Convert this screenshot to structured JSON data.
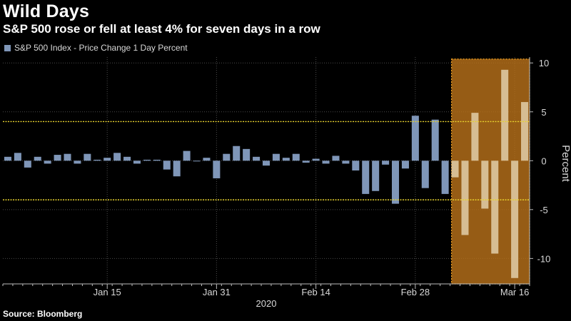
{
  "header": {
    "title": "Wild Days",
    "subtitle": "S&P 500 rose or fell at least 4% for seven days in a row"
  },
  "footer": {
    "source": "Source: Bloomberg"
  },
  "chart_data": {
    "type": "bar",
    "series": [
      {
        "name": "S&P 500 Index - Price Change 1 Day Percent",
        "values": [
          0.4,
          0.8,
          -0.7,
          0.4,
          -0.3,
          0.6,
          0.7,
          -0.3,
          0.7,
          0.1,
          0.3,
          0.8,
          0.4,
          -0.3,
          0.1,
          0.1,
          -0.9,
          -1.6,
          1.0,
          0.0,
          0.3,
          -1.8,
          0.7,
          1.5,
          1.2,
          0.4,
          -0.5,
          0.7,
          0.3,
          0.7,
          -0.2,
          0.2,
          -0.3,
          0.5,
          -0.3,
          -1.0,
          -3.4,
          -3.1,
          -0.4,
          -4.4,
          -0.8,
          4.6,
          -2.8,
          4.2,
          -3.4,
          -1.7,
          -7.6,
          4.9,
          -4.9,
          -9.5,
          9.3,
          -12.0,
          6.0
        ]
      }
    ],
    "x_ticks": [
      "Jan 15",
      "Jan 31",
      "Feb 14",
      "Feb 28",
      "Mar 16"
    ],
    "x_tick_index": [
      10,
      21,
      31,
      41,
      51
    ],
    "x_group_label": "2020",
    "ylabel": "Percent",
    "ylim": [
      -12.6,
      10.6
    ],
    "y_ticks": [
      10,
      5,
      0,
      -5,
      -10
    ],
    "y_tick_labels": [
      "10",
      "5",
      "0",
      "-5",
      "-10"
    ],
    "threshold_lines": [
      4,
      -4
    ],
    "highlight_range": {
      "from_index": 45,
      "to_index": 52,
      "ymin": -12.6,
      "ymax": 10.4
    },
    "grid": true,
    "legend_position": "top-left",
    "colors": {
      "bar": "#7f96b8",
      "bar_highlight": "#d6bd93",
      "threshold": "#e8d22e",
      "highlight_fill": "#b7701a",
      "highlight_border": "#f0a020",
      "grid": "#4a4a4a",
      "axis": "#bbbbbb"
    }
  }
}
